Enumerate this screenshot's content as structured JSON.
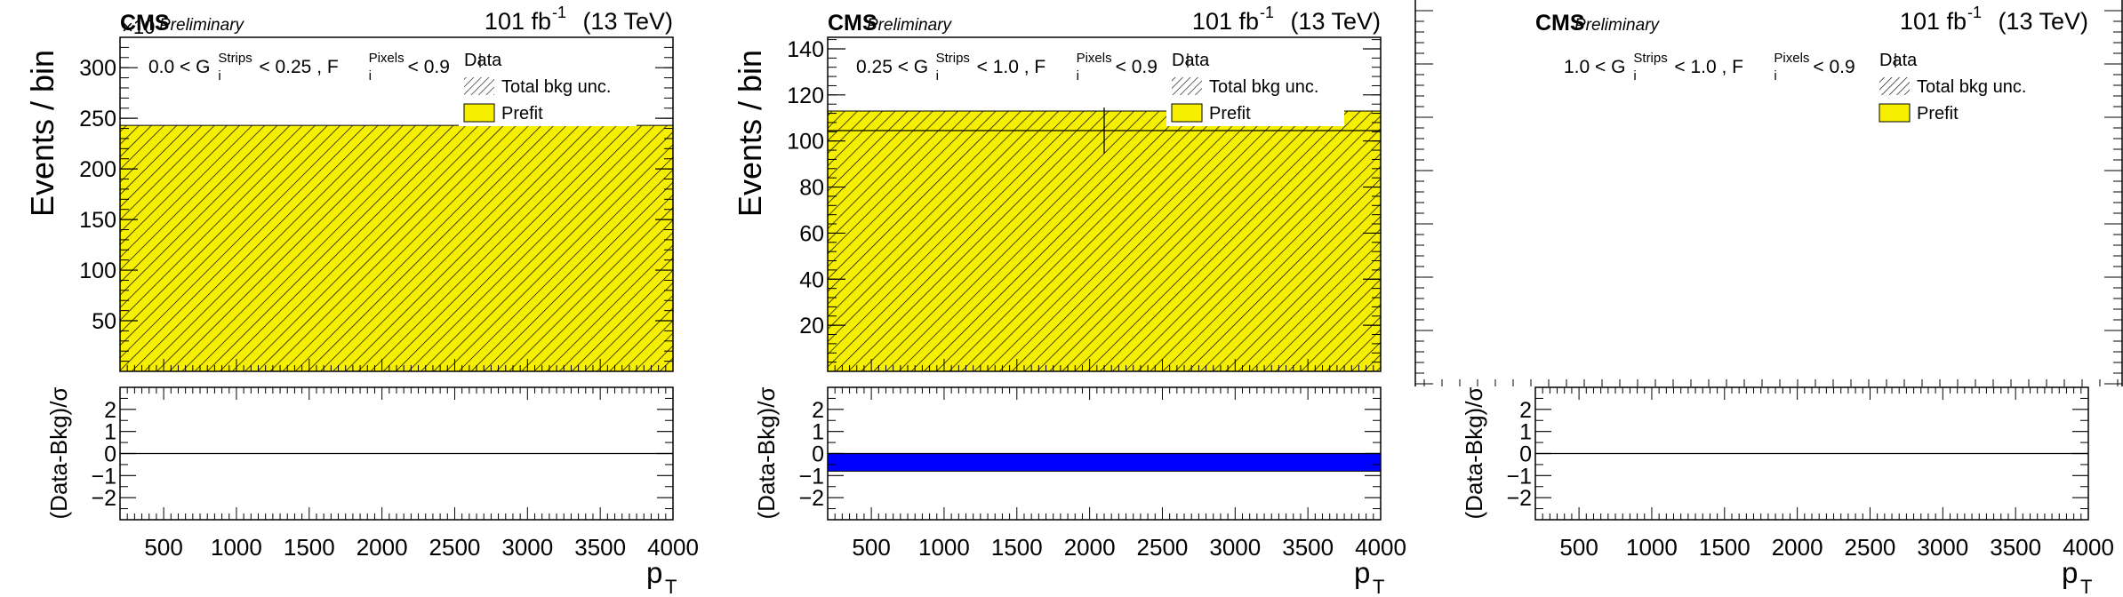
{
  "colors": {
    "prefit_fill": "#f7ef00",
    "hatch": "#000000",
    "pull_band": "#0000ff",
    "axis": "#000000"
  },
  "common": {
    "cms_label": "CMS",
    "preliminary_label": "Preliminary",
    "lumi_label": "101 fb",
    "lumi_sup": "-1",
    "energy_label": " (13 TeV)",
    "ylabel_main": "Events / bin",
    "ylabel_ratio": "(Data-Bkg)/σ",
    "xlabel": "p",
    "xlabel_sub": "T",
    "legend": [
      "Data",
      "Total bkg unc.",
      "Prefit"
    ],
    "xticks": [
      "500",
      "1000",
      "1500",
      "2000",
      "2500",
      "3000",
      "3500",
      "4000"
    ],
    "ratio_yticks": [
      "2",
      "1",
      "0",
      "−1",
      "−2"
    ]
  },
  "chart_data": [
    {
      "type": "bar",
      "panel_label_parts": [
        "0.0 < G",
        "Strips",
        "i",
        " < 0.25 , F",
        "Pixels",
        "i",
        " < 0.9"
      ],
      "exponent_label": "×10",
      "x_range": [
        200,
        4000
      ],
      "ylim": [
        0,
        330
      ],
      "yticks": [
        "50",
        "100",
        "150",
        "200",
        "250",
        "300"
      ],
      "ytick_values": [
        50,
        100,
        150,
        200,
        250,
        300
      ],
      "bins": [
        [
          200,
          4000
        ]
      ],
      "prefit": [
        243
      ],
      "data_points": [],
      "ratio_ylim": [
        -3,
        3
      ],
      "pull_bands": []
    },
    {
      "type": "bar",
      "panel_label_parts": [
        "0.25 < G",
        "Strips",
        "i",
        " < 1.0 , F",
        "Pixels",
        "i",
        " < 0.9"
      ],
      "x_range": [
        200,
        4000
      ],
      "ylim": [
        0,
        145
      ],
      "yticks": [
        "20",
        "40",
        "60",
        "80",
        "100",
        "120",
        "140"
      ],
      "ytick_values": [
        20,
        40,
        60,
        80,
        100,
        120,
        140
      ],
      "bins": [
        [
          200,
          4000
        ]
      ],
      "prefit": [
        113
      ],
      "data_points": [
        {
          "x": 2100,
          "x_low": 200,
          "x_high": 4000,
          "y": 104.5,
          "y_err": 10
        }
      ],
      "ratio_ylim": [
        -3,
        3
      ],
      "pull_bands": [
        {
          "x_low": 200,
          "x_high": 4000,
          "y_low": -0.8,
          "y_high": 0
        }
      ]
    },
    {
      "type": "bar",
      "panel_label_parts": [
        "1.0 < G",
        "Strips",
        "i",
        " < 1.0 , F",
        "Pixels",
        "i",
        " < 0.9"
      ],
      "x_range": [
        200,
        4000
      ],
      "ylim": [
        0,
        1
      ],
      "yticks": [],
      "ytick_values": [],
      "bins": [],
      "prefit": [],
      "data_points": [],
      "ratio_ylim": [
        -3,
        3
      ],
      "pull_bands": []
    }
  ]
}
